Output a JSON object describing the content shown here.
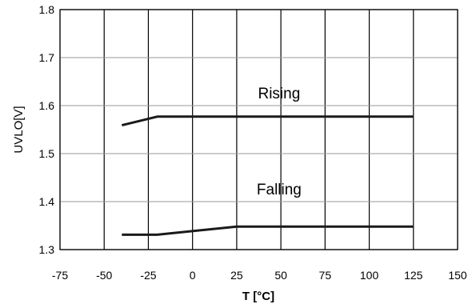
{
  "chart_data": {
    "type": "line",
    "title": "",
    "xlabel": "T [°C]",
    "ylabel": "UVLO[V]",
    "xlim": [
      -75,
      150
    ],
    "ylim": [
      1.3,
      1.8
    ],
    "x_ticks": [
      "-75",
      "-50",
      "-25",
      "0",
      "25",
      "50",
      "75",
      "100",
      "125",
      "150"
    ],
    "y_ticks": [
      "1.3",
      "1.4",
      "1.5",
      "1.6",
      "1.7",
      "1.8"
    ],
    "grid": "on",
    "legend": "none",
    "line_color": "#1a1a1a",
    "grid_color": "#000000",
    "series": [
      {
        "x": [
          -40,
          -20,
          125
        ],
        "y": [
          1.559,
          1.577,
          1.577
        ]
      },
      {
        "x": [
          -40,
          -20,
          25,
          125
        ],
        "y": [
          1.331,
          1.331,
          1.348,
          1.348
        ]
      }
    ],
    "annotations": [
      {
        "text": "Rising",
        "x": 49,
        "y": 1.615
      },
      {
        "text": "Falling",
        "x": 49,
        "y": 1.415
      }
    ]
  }
}
